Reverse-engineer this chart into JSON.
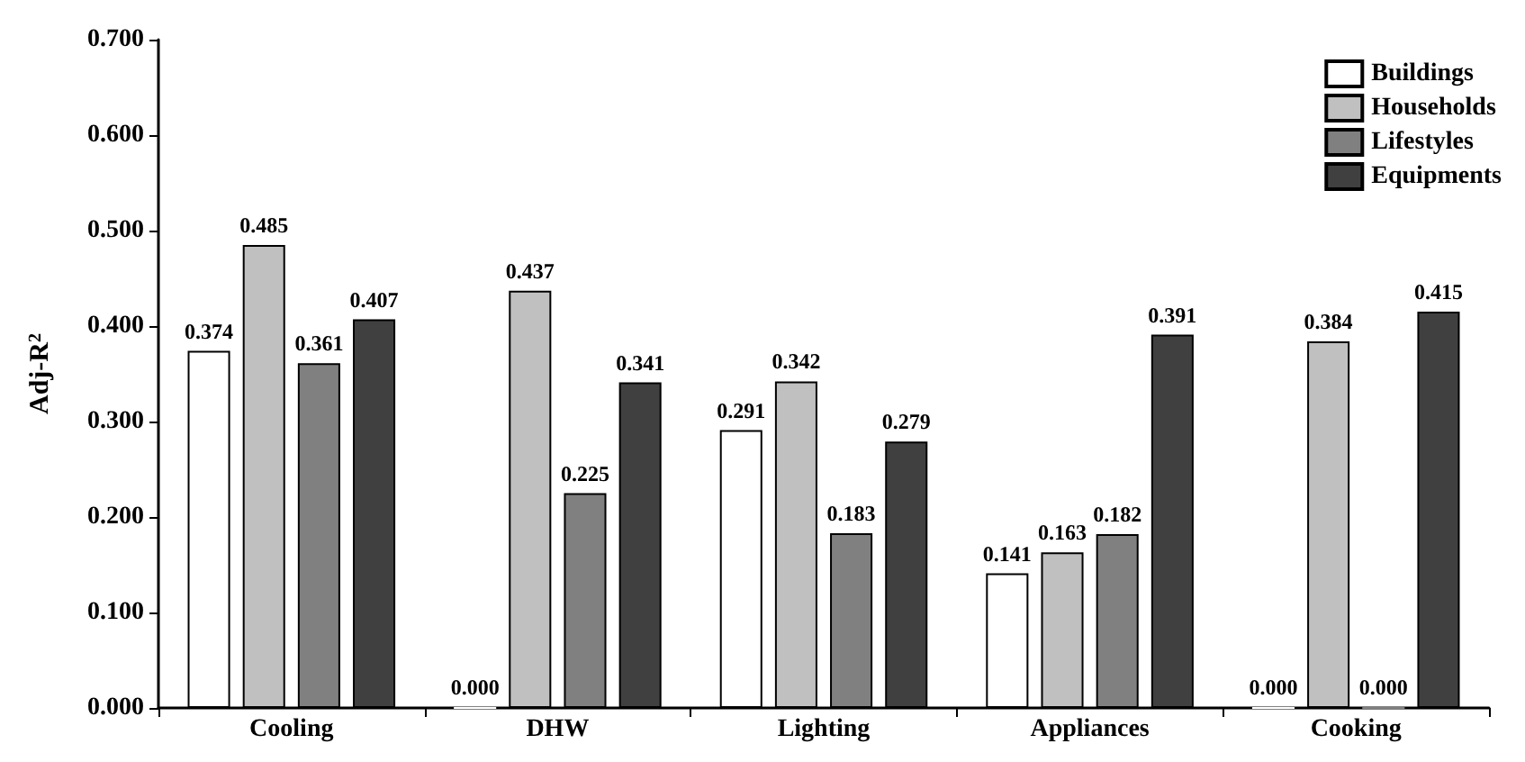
{
  "chart_data": {
    "type": "bar",
    "ylabel": "Adj-R$^{2}$",
    "categories": [
      "Cooling",
      "DHW",
      "Lighting",
      "Appliances",
      "Cooking"
    ],
    "series": [
      {
        "name": "Buildings",
        "color": "#ffffff",
        "values": [
          0.374,
          0,
          0.291,
          0.141,
          0
        ],
        "value_labels": [
          "0.374",
          "0.000",
          "0.291",
          "0.141",
          "0.000"
        ]
      },
      {
        "name": "Households",
        "color": "#c0c0c0",
        "values": [
          0.485,
          0.437,
          0.342,
          0.163,
          0.384
        ],
        "value_labels": [
          "0.485",
          "0.437",
          "0.342",
          "0.163",
          "0.384"
        ]
      },
      {
        "name": "Lifestyles",
        "color": "#808080",
        "values": [
          0.361,
          0.225,
          0.183,
          0.182,
          0
        ],
        "value_labels": [
          "0.361",
          "0.225",
          "0.183",
          "0.182",
          "0.000"
        ]
      },
      {
        "name": "Equipments",
        "color": "#404040",
        "values": [
          0.407,
          0.341,
          0.279,
          0.391,
          0.415
        ],
        "value_labels": [
          "0.407",
          "0.341",
          "0.279",
          "0.391",
          "0.415"
        ]
      }
    ],
    "ylim": [
      0,
      0.7
    ],
    "yticks": [
      {
        "value": 0,
        "label": "0.000"
      },
      {
        "value": 0.1,
        "label": "0.100"
      },
      {
        "value": 0.2,
        "label": "0.200"
      },
      {
        "value": 0.3,
        "label": "0.300"
      },
      {
        "value": 0.4,
        "label": "0.400"
      },
      {
        "value": 0.5,
        "label": "0.500"
      },
      {
        "value": 0.6,
        "label": "0.600"
      },
      {
        "value": 0.7,
        "label": "0.700"
      }
    ],
    "grid": false,
    "legend": "top right"
  }
}
